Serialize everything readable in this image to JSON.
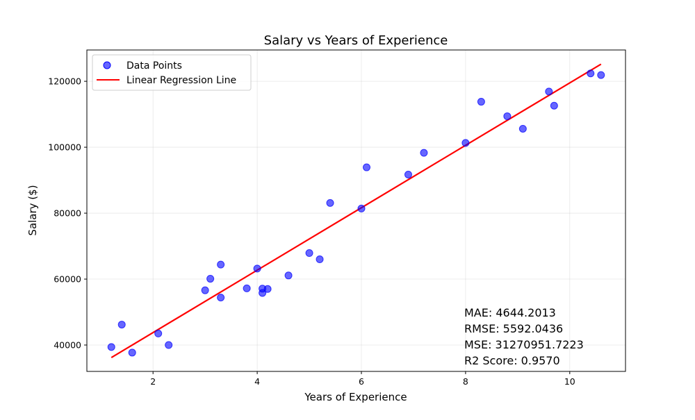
{
  "chart_data": {
    "type": "scatter",
    "title": "Salary vs Years of Experience",
    "xlabel": "Years of Experience",
    "ylabel": "Salary ($)",
    "xlim": [
      0.73,
      11.07
    ],
    "ylim": [
      32000,
      129500
    ],
    "xticks": [
      2,
      4,
      6,
      8,
      10
    ],
    "yticks": [
      40000,
      60000,
      80000,
      100000,
      120000
    ],
    "grid": true,
    "legend_position": "top-left",
    "series": [
      {
        "name": "Data Points",
        "type": "scatter",
        "color": "#0000ff",
        "x": [
          1.2,
          1.4,
          1.6,
          2.1,
          2.3,
          3.0,
          3.1,
          3.3,
          3.3,
          3.8,
          4.0,
          4.1,
          4.1,
          4.2,
          4.6,
          5.0,
          5.2,
          5.4,
          6.0,
          6.1,
          6.9,
          7.2,
          8.0,
          8.3,
          8.8,
          9.1,
          9.6,
          9.7,
          10.4,
          10.6
        ],
        "y": [
          39400,
          46200,
          37700,
          43500,
          40000,
          56600,
          60100,
          54400,
          64400,
          57200,
          63200,
          55800,
          57100,
          57000,
          61100,
          67900,
          66000,
          83100,
          81400,
          93900,
          91700,
          98300,
          101300,
          113800,
          109400,
          105600,
          116900,
          112600,
          122400,
          121900
        ]
      },
      {
        "name": "Linear Regression Line",
        "type": "line",
        "color": "#ff0000",
        "x": [
          1.2,
          10.6
        ],
        "y": [
          36200,
          125200
        ]
      }
    ],
    "annotations": [
      "MAE: 4644.2013",
      "RMSE: 5592.0436",
      "MSE: 31270951.7223",
      "R2 Score: 0.9570"
    ]
  }
}
